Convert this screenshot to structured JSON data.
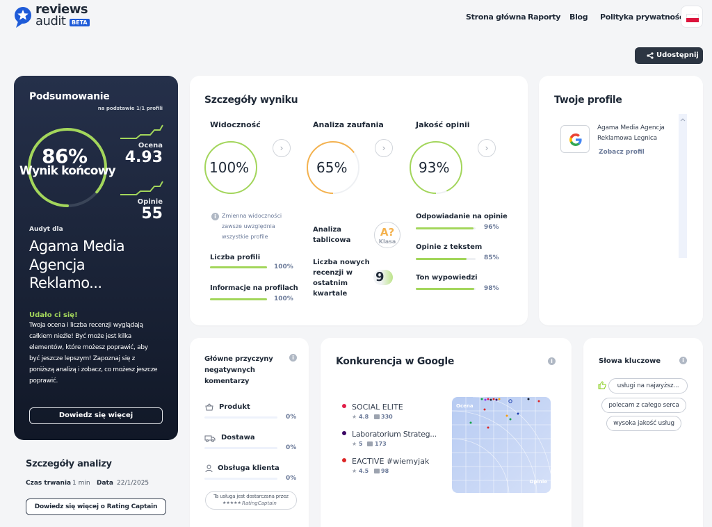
{
  "brand": {
    "line1": "reviews",
    "line2": "audit",
    "badge": "BETA"
  },
  "nav": {
    "home": "Strona główna",
    "reports": "Raporty",
    "blog": "Blog",
    "privacy": "Polityka prywatności"
  },
  "share_label": "Udostępnij",
  "summary": {
    "title": "Podsumowanie",
    "subtitle": "na podstawie 1/1 profili",
    "score": "86%",
    "score_label": "Wynik końcowy",
    "score_fraction": 0.86,
    "rating_label": "Ocena",
    "rating_value": "4.93",
    "reviews_label": "Opinie",
    "reviews_value": "55",
    "audit_for": "Audyt dla",
    "company": [
      "Agama Media",
      "Agencja",
      "Reklamo..."
    ],
    "success_title": "Udało ci się!",
    "success_text": [
      "Twoja ocena i liczba recenzji wyglądają",
      "całkiem nieźle! Być może jest kilka",
      "elementów, które możesz poprawić, aby",
      "być jeszcze lepszym! Zapoznaj się z",
      "poniższą analizą i zobacz, co możesz jeszcze",
      "poprawić."
    ],
    "more_button": "Dowiedz się więcej"
  },
  "analysis": {
    "title": "Szczegóły analizy",
    "duration_label": "Czas trwania",
    "duration_value": "1 min",
    "date_label": "Data",
    "date_value": "22/1/2025",
    "button": "Dowiedz się więcej o Rating Captain"
  },
  "details": {
    "title": "Szczegóły wyniku",
    "visibility": {
      "title": "Widoczność",
      "value": "100%",
      "fraction": 1.0,
      "note": [
        "Zmienna widoczności",
        "zawsze uwzględnia",
        "wszystkie profile"
      ],
      "profiles_label": "Liczba profili",
      "profiles_value": "100%",
      "profiles_fraction": 1.0,
      "info_label": "Informacje na profilach",
      "info_value": "100%",
      "info_fraction": 1.0
    },
    "trust": {
      "title": "Analiza zaufania",
      "value": "65%",
      "fraction": 0.65,
      "table_label": [
        "Analiza",
        "tablicowa"
      ],
      "grade": "A?",
      "grade_label": "Klasa",
      "new_reviews_label": [
        "Liczba nowych",
        "recenzji w",
        "ostatnim",
        "kwartale"
      ],
      "new_reviews_value": "9"
    },
    "quality": {
      "title": "Jakość opinii",
      "value": "93%",
      "fraction": 0.93,
      "reply_label": "Odpowiadanie na opinie",
      "reply_value": "96%",
      "reply_fraction": 0.96,
      "text_label": "Opinie z tekstem",
      "text_value": "85%",
      "text_fraction": 0.85,
      "tone_label": "Ton wypowiedzi",
      "tone_value": "98%",
      "tone_fraction": 0.98
    }
  },
  "profiles": {
    "title": "Twoje profile",
    "items": [
      {
        "name": [
          "Agama Media Agencja",
          "Reklamowa Legnica"
        ],
        "link": "Zobacz profil",
        "icon": "google-icon"
      }
    ]
  },
  "negatives": {
    "title": [
      "Główne przyczyny",
      "negatywnych",
      "komentarzy"
    ],
    "items": [
      {
        "label": "Produkt",
        "value": "0%",
        "icon": "basket-icon"
      },
      {
        "label": "Dostawa",
        "value": "0%",
        "icon": "truck-icon"
      },
      {
        "label": "Obsługa klienta",
        "value": "0%",
        "icon": "user-icon"
      }
    ],
    "provider": [
      "Ta usługa jest dostarczana przez",
      "RatingCaptain"
    ],
    "provider_stars": "★★★★★"
  },
  "competition": {
    "title": "Konkurencja w Google",
    "items": [
      {
        "name": "SOCIAL ELITE",
        "rating": "4.8",
        "count": "330",
        "color": "#e11d48"
      },
      {
        "name": "Laboratorium Strateg...",
        "rating": "5",
        "count": "173",
        "color": "#3b0764"
      },
      {
        "name": "EACTIVE #wiemyjak",
        "rating": "4.5",
        "count": "98",
        "color": "#dc2626"
      }
    ],
    "map_y_label": "Ocena",
    "map_x_label": "Opinie"
  },
  "keywords": {
    "title": "Słowa kluczowe",
    "items": [
      "usługi na najwyższ...",
      "polecam z całego serca",
      "wysoka jakość usług"
    ]
  },
  "colors": {
    "accent": "#a3d65b",
    "orange": "#f4b24f",
    "dark": "#1f2937",
    "navy": "#2c3542",
    "brand_blue": "#1e5bd8"
  }
}
